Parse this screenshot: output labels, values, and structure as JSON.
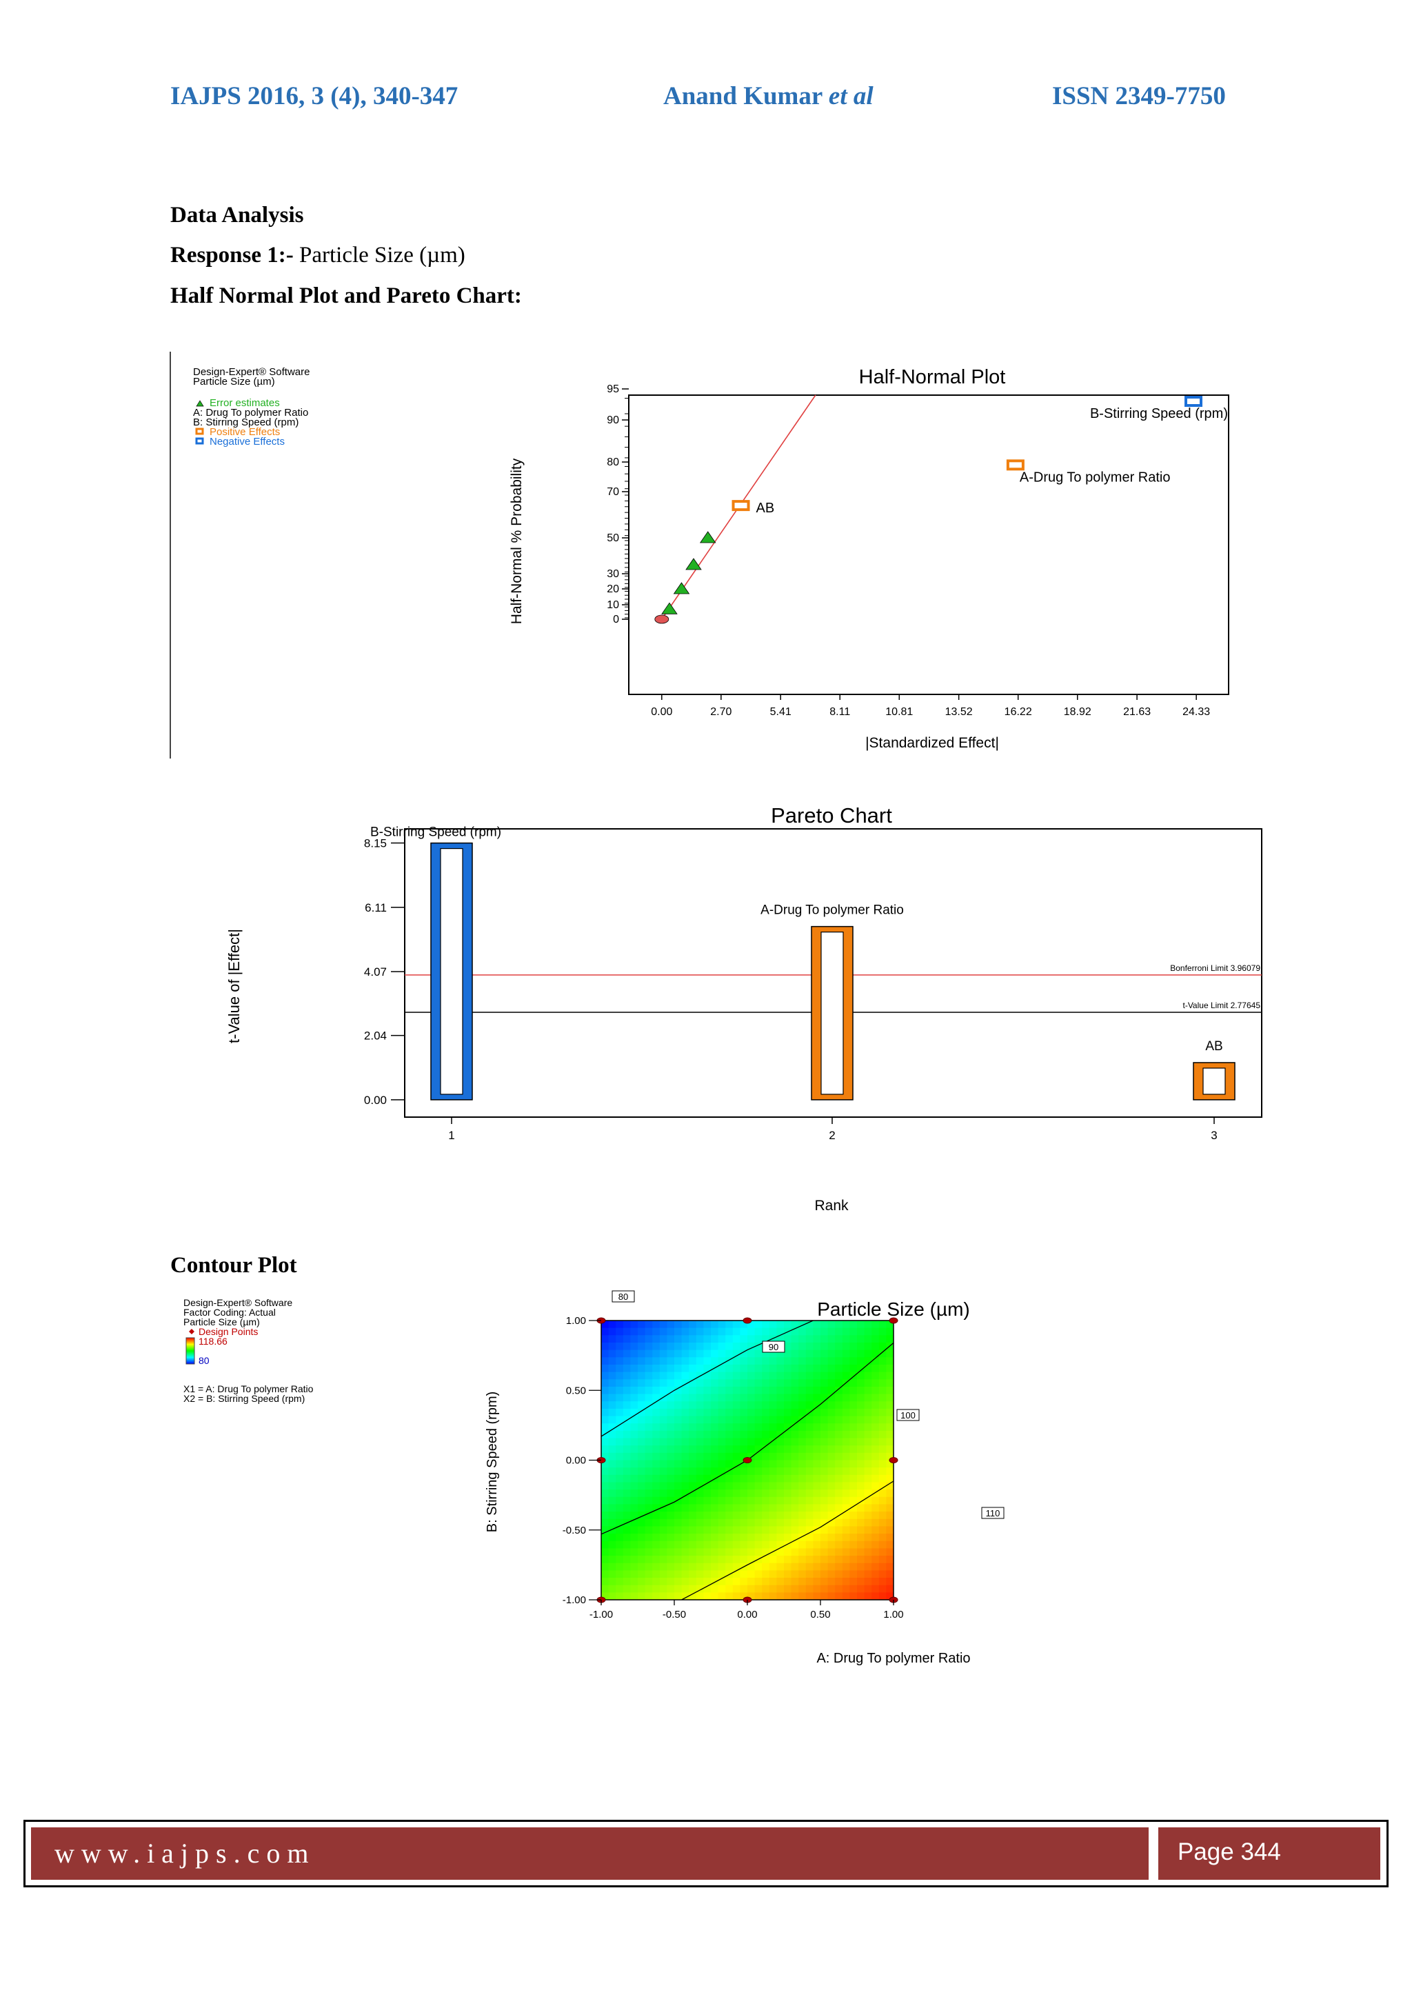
{
  "header": {
    "journal": "IAJPS 2016, 3 (4), 340-347",
    "author_name": "Anand Kumar",
    "author_suffix": "et al",
    "issn": "ISSN 2349-7750"
  },
  "sections": {
    "data_analysis": "Data Analysis",
    "response_label": "Response 1:-",
    "response_value": "Particle Size (µm)",
    "half_normal_heading": "Half Normal Plot and Pareto Chart:",
    "contour_heading": "Contour Plot"
  },
  "half_normal_legend": {
    "software": "Design-Expert® Software",
    "response": "Particle Size (µm)",
    "error_estimates": "Error estimates",
    "factor_a": "A: Drug To polymer Ratio",
    "factor_b": "B: Stirring Speed (rpm)",
    "positive": "Positive Effects",
    "negative": "Negative Effects"
  },
  "pareto_chart_text": {
    "bonferroni": "Bonferroni Limit 3.96079",
    "tvalue": "t-Value Limit 2.77645"
  },
  "contour_legend": {
    "software": "Design-Expert® Software",
    "coding": "Factor Coding: Actual",
    "response": "Particle Size (µm)",
    "design_points": "Design Points",
    "max": "118.66",
    "min": "80",
    "x1": "X1 = A: Drug To polymer Ratio",
    "x2": "X2 = B: Stirring Speed (rpm)"
  },
  "footer": {
    "url": "www.iajps.com",
    "page": "Page 344"
  },
  "colors": {
    "header_blue": "#2a6fb4",
    "footer_red": "#943634",
    "positive": "#f07f0e",
    "negative": "#1a6fd8",
    "error_green": "#22b022",
    "limit_red": "#e04040"
  },
  "chart_data": [
    {
      "type": "scatter",
      "title": "Half-Normal Plot",
      "xlabel": "|Standardized Effect|",
      "ylabel": "Half-Normal % Probability",
      "xticks": [
        "0.00",
        "2.70",
        "5.41",
        "8.11",
        "10.81",
        "13.52",
        "16.22",
        "18.92",
        "21.63",
        "24.33"
      ],
      "yticks": [
        "0",
        "10",
        "20",
        "30",
        "50",
        "70",
        "80",
        "90",
        "95"
      ],
      "xlim": [
        -1.5,
        25.8
      ],
      "series": [
        {
          "name": "Error estimates",
          "points": [
            [
              0.0,
              0
            ],
            [
              0.35,
              7
            ],
            [
              0.9,
              20
            ],
            [
              1.45,
              35
            ],
            [
              2.1,
              50
            ]
          ]
        },
        {
          "name": "Positive Effects",
          "points": [
            [
              3.6,
              64,
              "AB"
            ],
            [
              16.1,
              79,
              "A-Drug To polymer Ratio"
            ]
          ]
        },
        {
          "name": "Negative Effects",
          "points": [
            [
              24.2,
              93,
              "B-Stirring Speed (rpm)"
            ]
          ]
        }
      ],
      "fit_line": [
        [
          0.0,
          0
        ],
        [
          7.0,
          99
        ]
      ]
    },
    {
      "type": "bar",
      "title": "Pareto Chart",
      "xlabel": "Rank",
      "ylabel": "t-Value of |Effect|",
      "categories": [
        "1",
        "2",
        "3"
      ],
      "values": [
        8.15,
        5.5,
        1.18
      ],
      "labels": [
        "B-Stirring Speed (rpm)",
        "A-Drug To polymer Ratio",
        "AB"
      ],
      "effect_sign": [
        "negative",
        "positive",
        "positive"
      ],
      "yticks": [
        "0.00",
        "2.04",
        "4.07",
        "6.11",
        "8.15"
      ],
      "ylim": [
        -0.55,
        8.6
      ],
      "bonferroni_limit": 3.96079,
      "t_value_limit": 2.77645
    },
    {
      "type": "heatmap",
      "title": "Particle Size (µm)",
      "xlabel": "A: Drug To polymer Ratio",
      "ylabel": "B: Stirring Speed (rpm)",
      "xticks": [
        "-1.00",
        "-0.50",
        "0.00",
        "0.50",
        "1.00"
      ],
      "yticks": [
        "-1.00",
        "-0.50",
        "0.00",
        "0.50",
        "1.00"
      ],
      "color_range": [
        80,
        118.66
      ],
      "contours": [
        {
          "level": "80",
          "points": [
            [
              -1.0,
              0.96
            ],
            [
              -0.98,
              0.98
            ]
          ]
        },
        {
          "level": "90",
          "points": [
            [
              -1.0,
              0.17
            ],
            [
              -0.5,
              0.5
            ],
            [
              0.0,
              0.79
            ],
            [
              0.45,
              1.0
            ]
          ]
        },
        {
          "level": "100",
          "points": [
            [
              -1.0,
              -0.53
            ],
            [
              -0.5,
              -0.3
            ],
            [
              0.0,
              0.0
            ],
            [
              0.5,
              0.4
            ],
            [
              1.0,
              0.84
            ]
          ]
        },
        {
          "level": "110",
          "points": [
            [
              -0.45,
              -1.0
            ],
            [
              0.0,
              -0.75
            ],
            [
              0.5,
              -0.48
            ],
            [
              1.0,
              -0.15
            ]
          ]
        }
      ],
      "design_points": [
        [
          -1,
          1
        ],
        [
          0,
          1
        ],
        [
          1,
          1
        ],
        [
          -1,
          0
        ],
        [
          0,
          0
        ],
        [
          1,
          0
        ],
        [
          -1,
          -1
        ],
        [
          0,
          -1
        ],
        [
          1,
          -1
        ]
      ]
    }
  ]
}
